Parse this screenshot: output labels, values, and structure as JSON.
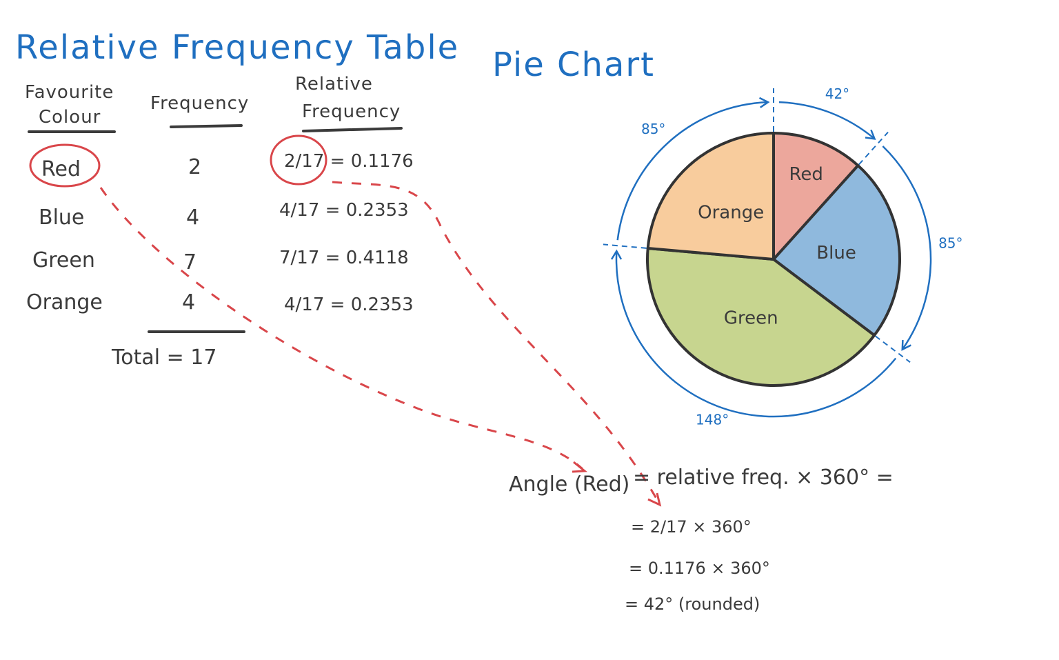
{
  "table": {
    "title": "Relative Frequency Table",
    "headers": [
      "Favourite",
      "Colour",
      "Frequency",
      "Relative",
      "Frequency"
    ],
    "rows": [
      {
        "colour": "Red",
        "frequency": "2",
        "relative": "2/17 = 0.1176"
      },
      {
        "colour": "Blue",
        "frequency": "4",
        "relative": "4/17 = 0.2353"
      },
      {
        "colour": "Green",
        "frequency": "7",
        "relative": "7/17 = 0.4118"
      },
      {
        "colour": "Orange",
        "frequency": "4",
        "relative": "4/17 = 0.2353"
      }
    ],
    "total": "Total = 17"
  },
  "chart_data": {
    "type": "pie",
    "title": "Pie Chart",
    "slices": [
      {
        "label": "Red",
        "value": 2,
        "angle": 42,
        "angle_label": "42°",
        "color": "#eca79c"
      },
      {
        "label": "Blue",
        "value": 4,
        "angle": 85,
        "angle_label": "85°",
        "color": "#8fb9dd"
      },
      {
        "label": "Green",
        "value": 7,
        "angle": 148,
        "angle_label": "148°",
        "color": "#c7d58f"
      },
      {
        "label": "Orange",
        "value": 4,
        "angle": 85,
        "angle_label": "85°",
        "color": "#f8cc9d"
      }
    ],
    "start": "top",
    "direction": "clockwise"
  },
  "calculation": {
    "line1_left": "Angle (Red)",
    "line1_right": "= relative freq. × 360° =",
    "line2": "= 2/17 × 360°",
    "line3": "= 0.1176 × 360°",
    "line4": "= 42°  (rounded)"
  },
  "colors": {
    "title_ink": "#1f6fc0",
    "text_ink": "#3b3b3b",
    "highlight": "#d9464a",
    "outline": "#333333"
  }
}
